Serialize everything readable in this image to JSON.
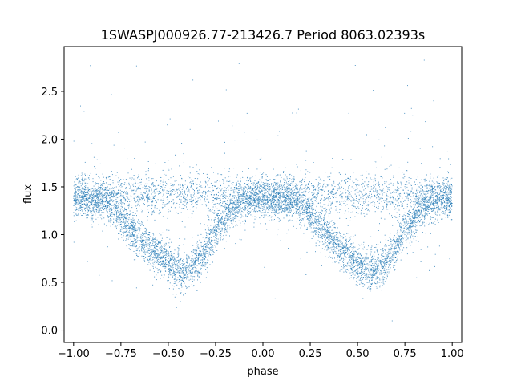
{
  "chart_data": {
    "type": "scatter",
    "title": "1SWASPJ000926.77-213426.7 Period 8063.02393s",
    "xlabel": "phase",
    "ylabel": "flux",
    "xlim": [
      -1.05,
      1.05
    ],
    "ylim": [
      -0.13,
      2.97
    ],
    "x_ticks": [
      -1.0,
      -0.75,
      -0.5,
      -0.25,
      0.0,
      0.25,
      0.5,
      0.75,
      1.0
    ],
    "x_tick_labels": [
      "−1.00",
      "−0.75",
      "−0.50",
      "−0.25",
      "0.00",
      "0.25",
      "0.50",
      "0.75",
      "1.00"
    ],
    "y_ticks": [
      0.0,
      0.5,
      1.0,
      1.5,
      2.0,
      2.5
    ],
    "y_tick_labels": [
      "0.0",
      "0.5",
      "1.0",
      "1.5",
      "2.0",
      "2.5"
    ],
    "grid": false,
    "point_color": "#1f77b4",
    "series": [
      {
        "phase_range": [
          -1.0,
          1.0
        ],
        "baseline_flux": 1.37,
        "upper_band_flux": 1.42,
        "eclipse_phases": [
          -0.43,
          0.57
        ],
        "eclipse_min_flux": 0.62,
        "eclipse_half_width": 0.3,
        "points": [
          [
            -1.0,
            1.38
          ],
          [
            -0.95,
            1.4
          ],
          [
            -0.9,
            1.35
          ],
          [
            -0.85,
            1.36
          ],
          [
            -0.8,
            1.3
          ],
          [
            -0.75,
            1.18
          ],
          [
            -0.7,
            1.05
          ],
          [
            -0.65,
            0.95
          ],
          [
            -0.6,
            0.88
          ],
          [
            -0.55,
            0.78
          ],
          [
            -0.5,
            0.7
          ],
          [
            -0.45,
            0.63
          ],
          [
            -0.43,
            0.6
          ],
          [
            -0.4,
            0.64
          ],
          [
            -0.35,
            0.72
          ],
          [
            -0.3,
            0.85
          ],
          [
            -0.25,
            1.02
          ],
          [
            -0.2,
            1.18
          ],
          [
            -0.15,
            1.3
          ],
          [
            -0.1,
            1.35
          ],
          [
            -0.05,
            1.38
          ],
          [
            0.0,
            1.37
          ],
          [
            0.05,
            1.38
          ],
          [
            0.1,
            1.36
          ],
          [
            0.15,
            1.37
          ],
          [
            0.2,
            1.32
          ],
          [
            0.25,
            1.2
          ],
          [
            0.3,
            1.08
          ],
          [
            0.35,
            0.98
          ],
          [
            0.4,
            0.88
          ],
          [
            0.45,
            0.78
          ],
          [
            0.5,
            0.7
          ],
          [
            0.55,
            0.63
          ],
          [
            0.57,
            0.6
          ],
          [
            0.6,
            0.64
          ],
          [
            0.65,
            0.72
          ],
          [
            0.7,
            0.86
          ],
          [
            0.75,
            1.02
          ],
          [
            0.8,
            1.18
          ],
          [
            0.85,
            1.3
          ],
          [
            0.9,
            1.35
          ],
          [
            0.95,
            1.38
          ],
          [
            1.0,
            1.37
          ]
        ]
      }
    ]
  }
}
